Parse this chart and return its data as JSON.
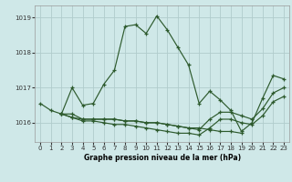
{
  "title": "Graphe pression niveau de la mer (hPa)",
  "bg_color": "#cfe8e8",
  "line_color": "#2d5a2d",
  "grid_color": "#b0cccc",
  "xlim": [
    -0.5,
    23.5
  ],
  "ylim": [
    1015.45,
    1019.35
  ],
  "yticks": [
    1016,
    1017,
    1018,
    1019
  ],
  "ytick_labels": [
    "1016",
    "1017",
    "1018",
    "1019"
  ],
  "xticks": [
    0,
    1,
    2,
    3,
    4,
    5,
    6,
    7,
    8,
    9,
    10,
    11,
    12,
    13,
    14,
    15,
    16,
    17,
    18,
    19,
    20,
    21,
    22,
    23
  ],
  "series": [
    {
      "x": [
        0,
        1,
        2,
        3,
        4,
        5,
        6,
        7,
        8,
        9,
        10,
        11,
        12,
        13,
        14,
        15,
        16,
        17,
        18,
        19,
        20,
        21,
        22,
        23
      ],
      "y": [
        1016.55,
        1016.35,
        1016.25,
        1017.0,
        1016.5,
        1016.55,
        1017.1,
        1017.5,
        1018.75,
        1018.8,
        1018.55,
        1019.05,
        1018.65,
        1018.15,
        1017.65,
        1016.55,
        1016.9,
        1016.65,
        1016.35,
        1015.75,
        1016.0,
        1016.7,
        1017.35,
        1017.25
      ]
    },
    {
      "x": [
        2,
        3,
        4,
        5,
        6,
        7,
        8,
        9,
        10,
        11,
        12,
        13,
        14,
        15,
        16,
        17,
        18,
        19
      ],
      "y": [
        1016.25,
        1016.25,
        1016.1,
        1016.1,
        1016.1,
        1016.1,
        1016.05,
        1016.05,
        1016.0,
        1016.0,
        1015.95,
        1015.9,
        1015.85,
        1015.85,
        1015.8,
        1015.75,
        1015.75,
        1015.7
      ]
    },
    {
      "x": [
        2,
        3,
        4,
        5,
        6,
        7,
        8,
        9,
        10,
        11,
        12,
        13,
        14,
        15,
        16,
        17,
        18,
        19,
        20,
        21,
        22,
        23
      ],
      "y": [
        1016.25,
        1016.15,
        1016.1,
        1016.1,
        1016.1,
        1016.1,
        1016.05,
        1016.05,
        1016.0,
        1016.0,
        1015.95,
        1015.9,
        1015.85,
        1015.8,
        1016.1,
        1016.3,
        1016.3,
        1016.2,
        1016.1,
        1016.4,
        1016.85,
        1017.0
      ]
    },
    {
      "x": [
        2,
        3,
        4,
        5,
        6,
        7,
        8,
        9,
        10,
        11,
        12,
        13,
        14,
        15,
        16,
        17,
        18,
        19,
        20,
        21,
        22,
        23
      ],
      "y": [
        1016.25,
        1016.15,
        1016.05,
        1016.05,
        1016.0,
        1015.95,
        1015.95,
        1015.9,
        1015.85,
        1015.8,
        1015.75,
        1015.7,
        1015.7,
        1015.65,
        1015.85,
        1016.1,
        1016.1,
        1016.0,
        1015.95,
        1016.2,
        1016.6,
        1016.75
      ]
    }
  ]
}
